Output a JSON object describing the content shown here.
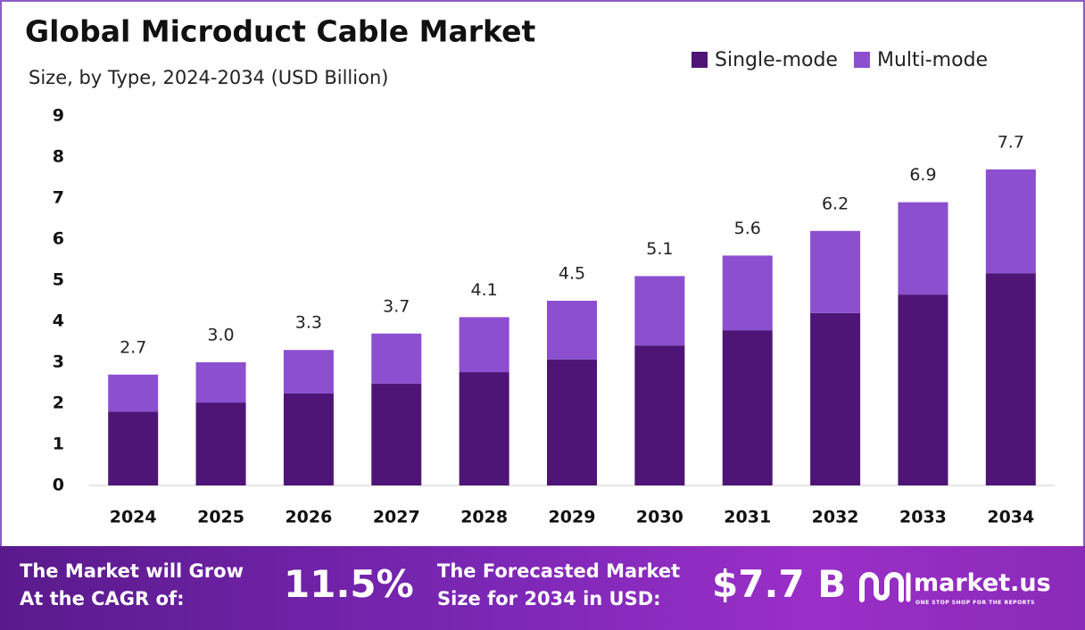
{
  "chart_data": {
    "type": "stacked-bar",
    "title": "Global Microduct Cable Market",
    "subtitle": "Size, by Type, 2024-2034 (USD Billion)",
    "categories": [
      "2024",
      "2025",
      "2026",
      "2027",
      "2028",
      "2029",
      "2030",
      "2031",
      "2032",
      "2033",
      "2034"
    ],
    "series": [
      {
        "name": "Single-mode",
        "color": "#4e1577",
        "values": [
          1.8,
          2.02,
          2.24,
          2.48,
          2.76,
          3.07,
          3.41,
          3.78,
          4.2,
          4.65,
          5.17
        ]
      },
      {
        "name": "Multi-mode",
        "color": "#8b4fd0",
        "values": [
          0.9,
          0.98,
          1.06,
          1.22,
          1.34,
          1.43,
          1.69,
          1.82,
          2.0,
          2.25,
          2.53
        ]
      }
    ],
    "totals": {
      "values": [
        2.7,
        3,
        3.3,
        3.7,
        4.1,
        4.5,
        5.1,
        5.6,
        6.2,
        6.9,
        7.7
      ],
      "value_labels": [
        "2.7",
        "3.0",
        "3.3",
        "3.7",
        "4.1",
        "4.5",
        "5.1",
        "5.6",
        "6.2",
        "6.9",
        "7.7"
      ]
    },
    "ylim": [
      0,
      9
    ],
    "yticks": [
      0,
      1,
      2,
      3,
      4,
      5,
      6,
      7,
      8,
      9
    ],
    "grid": false,
    "legend": "top-right"
  },
  "footer": {
    "cagr_text": [
      "The Market will Grow",
      "At the CAGR of:"
    ],
    "cagr_value": "11.5%",
    "forecast_text": [
      "The Forecasted Market",
      "Size for 2034 in USD:"
    ],
    "forecast_value": "$7.7 B",
    "brand": "market.us",
    "tagline": "ONE STOP SHOP FOR THE REPORTS"
  }
}
